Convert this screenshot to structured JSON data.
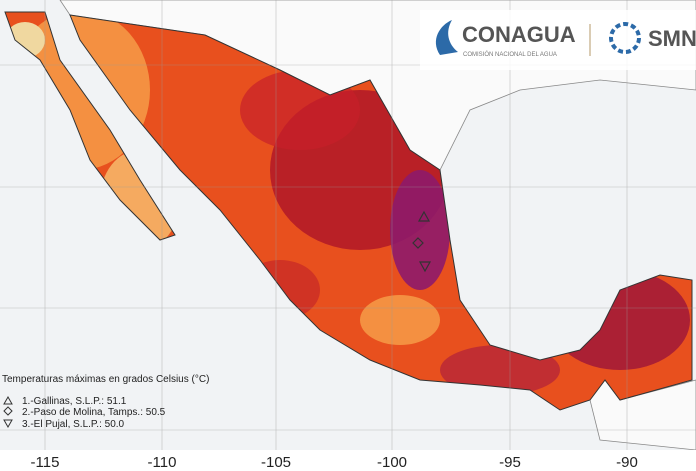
{
  "header": {
    "logo_name": "CONAGUA",
    "logo_subtitle": "COMISIÓN NACIONAL DEL AGUA",
    "logo2_name": "SMN"
  },
  "axis": {
    "labels": [
      "-115",
      "-110",
      "-105",
      "-100",
      "-95",
      "-90"
    ]
  },
  "legend": {
    "title": "Temperaturas máximas en grados Celsius (°C)",
    "entries": [
      "1.-Gallinas, S.L.P.: 51.1",
      "2.-Paso de Molina, Tamps.: 50.5",
      "3.-El Pujal, S.L.P.: 50.0"
    ]
  }
}
